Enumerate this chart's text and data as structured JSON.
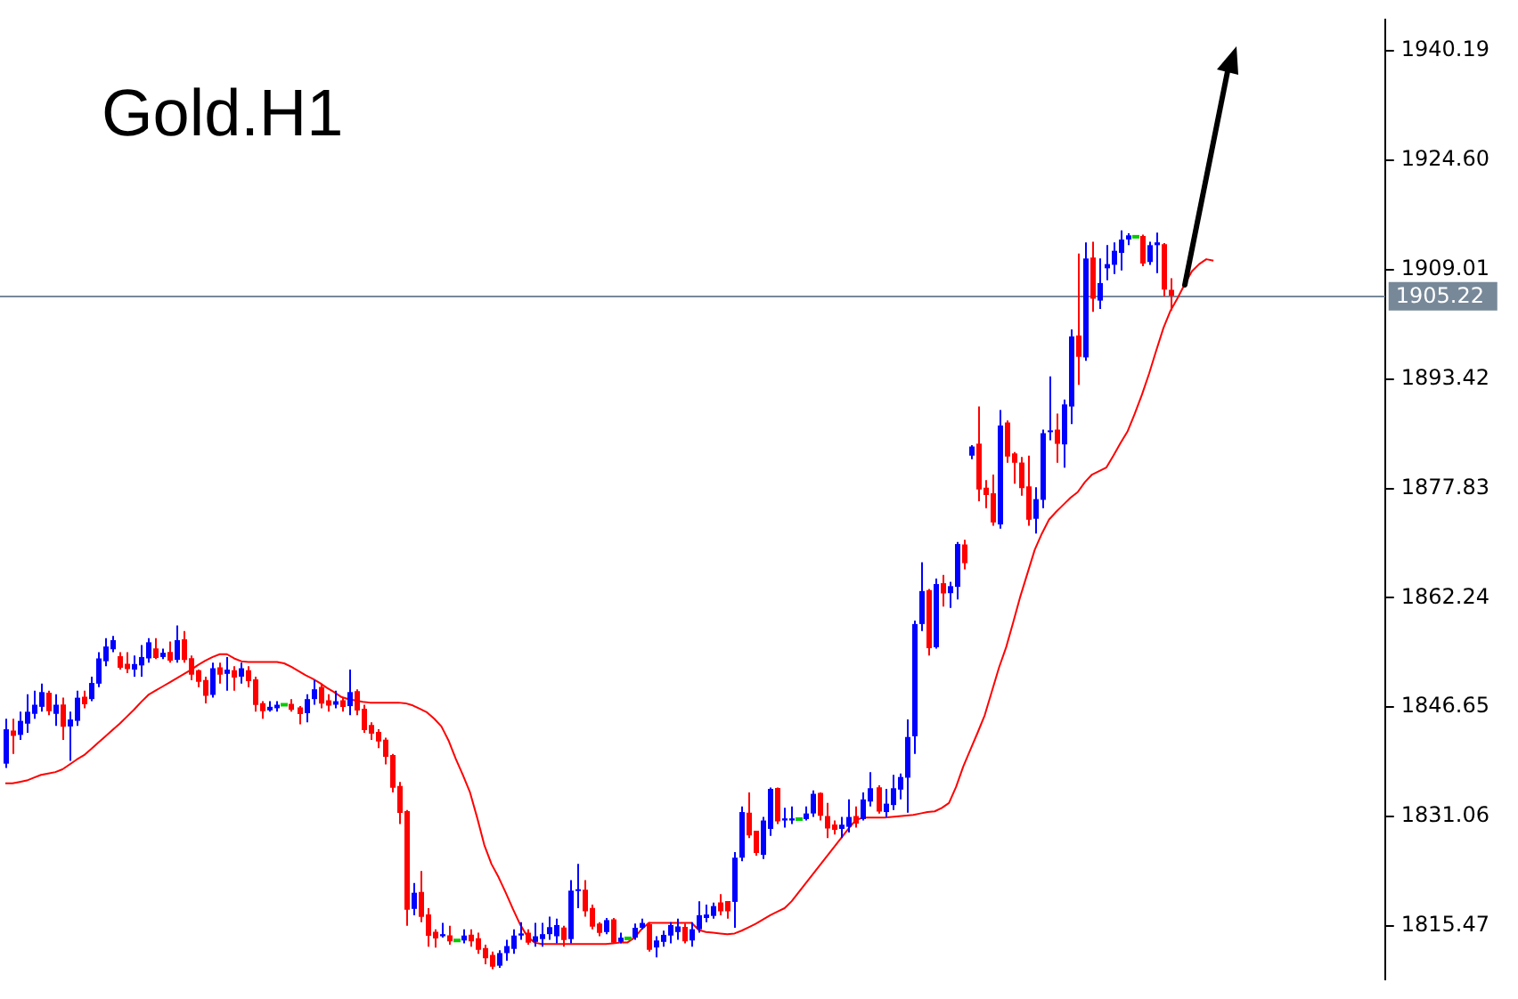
{
  "chart_data": {
    "type": "candlestick",
    "title": "Gold.H1",
    "categories": [
      null,
      null,
      null,
      null,
      null,
      null,
      null,
      null,
      null,
      null,
      null,
      null,
      null,
      null,
      null,
      null,
      null,
      null,
      null,
      null,
      null,
      null,
      null,
      null,
      null,
      null,
      null,
      null,
      null,
      null,
      null,
      null,
      null,
      null,
      null,
      null,
      null,
      null,
      null,
      null,
      null,
      null,
      null,
      null,
      null,
      null,
      null,
      null,
      null,
      null,
      null,
      null,
      null,
      null,
      null,
      null,
      null,
      null,
      null,
      null,
      null,
      null,
      null,
      null,
      null,
      null,
      null,
      null,
      null,
      null,
      null,
      null,
      null,
      null,
      null,
      null,
      null,
      null,
      null,
      null,
      null,
      null,
      null,
      null,
      null,
      null,
      null,
      null,
      null,
      null,
      null,
      null,
      null,
      null,
      null,
      null,
      null,
      null,
      null,
      null,
      null,
      null,
      null,
      null,
      null,
      null,
      null,
      null,
      null,
      null,
      null,
      null,
      null,
      null,
      null,
      null,
      null,
      null,
      null,
      null,
      null,
      null,
      null,
      null,
      null,
      null,
      null,
      null,
      null,
      null,
      null,
      null,
      null,
      null,
      null,
      null,
      null,
      null,
      null,
      null,
      null,
      null,
      null,
      null,
      null,
      null,
      null,
      null,
      null,
      null,
      null,
      null,
      null,
      null,
      null,
      null,
      null,
      null,
      null,
      null,
      null,
      null,
      null,
      null,
      null,
      null,
      null,
      null,
      null,
      null
    ],
    "ohlc": [
      [
        1838.6,
        1845,
        1838,
        1843.5
      ],
      [
        1843.2,
        1845,
        1840,
        1842.7
      ],
      [
        1842.7,
        1846,
        1842,
        1844.7
      ],
      [
        1844.3,
        1848.5,
        1843,
        1846
      ],
      [
        1845.7,
        1849,
        1845,
        1847
      ],
      [
        1846.7,
        1850,
        1846,
        1848.8
      ],
      [
        1848.6,
        1849,
        1845.5,
        1846.2
      ],
      [
        1845.7,
        1848.5,
        1844,
        1847
      ],
      [
        1846.9,
        1848,
        1842,
        1844
      ],
      [
        1843.9,
        1846,
        1839,
        1844.9
      ],
      [
        1844.7,
        1849,
        1844,
        1848
      ],
      [
        1848,
        1849,
        1846.5,
        1847.2
      ],
      [
        1847.8,
        1851,
        1847.5,
        1850.1
      ],
      [
        1850,
        1854.5,
        1849.5,
        1853.6
      ],
      [
        1853.2,
        1856.5,
        1852.5,
        1855.3
      ],
      [
        1854.9,
        1856.8,
        1854.5,
        1856.2
      ],
      [
        1853.8,
        1854.5,
        1852,
        1852.4
      ],
      [
        1852.7,
        1854.5,
        1851.5,
        1852.2
      ],
      [
        1852,
        1854,
        1851,
        1852.8
      ],
      [
        1852.6,
        1855.5,
        1851,
        1853.8
      ],
      [
        1853.6,
        1856.5,
        1853,
        1855.9
      ],
      [
        1854.9,
        1856.5,
        1853.5,
        1853.8
      ],
      [
        1853.8,
        1855,
        1853.5,
        1854.4
      ],
      [
        1854.4,
        1856,
        1853,
        1853.4
      ],
      [
        1853.4,
        1858.3,
        1853,
        1856.2
      ],
      [
        1856.2,
        1857.5,
        1853,
        1853.5
      ],
      [
        1853.5,
        1854,
        1850.5,
        1851.4
      ],
      [
        1851.8,
        1852,
        1849.5,
        1850.4
      ],
      [
        1850.4,
        1851,
        1847.2,
        1848.4
      ],
      [
        1848.4,
        1853,
        1848,
        1852.2
      ],
      [
        1852.2,
        1853,
        1850,
        1851.4
      ],
      [
        1851.4,
        1853.8,
        1849,
        1852
      ],
      [
        1851.8,
        1852.5,
        1849,
        1851
      ],
      [
        1851,
        1853,
        1850,
        1852.2
      ],
      [
        1851.8,
        1852.5,
        1849.5,
        1850.5
      ],
      [
        1850.5,
        1851,
        1846,
        1847.1
      ],
      [
        1847.1,
        1847.5,
        1845,
        1846.2
      ],
      [
        1846.2,
        1847.5,
        1846,
        1846.7
      ],
      [
        1846.5,
        1847.5,
        1846,
        1847
      ],
      [
        1847,
        1847.2,
        1846.8,
        1847
      ],
      [
        1847,
        1847.8,
        1846,
        1846.4
      ],
      [
        1846.5,
        1846.8,
        1844.2,
        1845.8
      ],
      [
        1845.8,
        1848.5,
        1844.5,
        1847.8
      ],
      [
        1847.8,
        1850.5,
        1847,
        1849.2
      ],
      [
        1849.4,
        1850,
        1846.5,
        1847.3
      ],
      [
        1847.5,
        1848.5,
        1846,
        1847
      ],
      [
        1847,
        1849,
        1846.5,
        1847.5
      ],
      [
        1847.5,
        1848,
        1846,
        1846.8
      ],
      [
        1846.8,
        1852,
        1845.5,
        1848.8
      ],
      [
        1848.8,
        1849.2,
        1845.5,
        1846.3
      ],
      [
        1846.3,
        1847,
        1843,
        1843.5
      ],
      [
        1844,
        1844.5,
        1842,
        1843
      ],
      [
        1843,
        1843.5,
        1840.8,
        1841.9
      ],
      [
        1841.9,
        1842.3,
        1838.5,
        1839.7
      ],
      [
        1839.7,
        1840,
        1834.5,
        1835.3
      ],
      [
        1835.3,
        1836,
        1830,
        1831.7
      ],
      [
        1831.7,
        1832,
        1815.5,
        1817.9
      ],
      [
        1817.9,
        1821.6,
        1817,
        1820.2
      ],
      [
        1820.2,
        1823.3,
        1816,
        1816.9
      ],
      [
        1817,
        1818,
        1812.5,
        1814.2
      ],
      [
        1814.5,
        1815,
        1812.4,
        1813.8
      ],
      [
        1814,
        1815.9,
        1813.8,
        1814.3
      ],
      [
        1814,
        1815.5,
        1812.8,
        1813.4
      ],
      [
        1813.4,
        1813.5,
        1813.3,
        1813.4
      ],
      [
        1813.4,
        1815,
        1813,
        1814.1
      ],
      [
        1814.1,
        1815,
        1812.5,
        1813.4
      ],
      [
        1813.6,
        1814.5,
        1811.5,
        1812.2
      ],
      [
        1812.2,
        1812.8,
        1810,
        1811
      ],
      [
        1811.2,
        1811.8,
        1809.3,
        1809.8
      ],
      [
        1809.8,
        1812,
        1809.5,
        1811.6
      ],
      [
        1811.6,
        1813.5,
        1810.5,
        1812.6
      ],
      [
        1812.2,
        1815,
        1811.5,
        1814.1
      ],
      [
        1814.1,
        1816,
        1813.5,
        1814.4
      ],
      [
        1814.4,
        1815,
        1812.8,
        1813.2
      ],
      [
        1813.2,
        1815.9,
        1812.5,
        1814
      ],
      [
        1813.6,
        1815.9,
        1812.5,
        1814.3
      ],
      [
        1814.3,
        1816.8,
        1813.5,
        1815.3
      ],
      [
        1814,
        1816.5,
        1813,
        1815.6
      ],
      [
        1815.1,
        1815.5,
        1812.5,
        1813.6
      ],
      [
        1813.6,
        1822,
        1813,
        1820.5
      ],
      [
        1820.5,
        1824.3,
        1818,
        1820.7
      ],
      [
        1820.5,
        1822,
        1816.8,
        1817.7
      ],
      [
        1817.9,
        1818.5,
        1815,
        1815.5
      ],
      [
        1815.7,
        1816,
        1814,
        1814.6
      ],
      [
        1814.6,
        1816.6,
        1814.3,
        1816.3
      ],
      [
        1816.3,
        1816.6,
        1813,
        1813.2
      ],
      [
        1813.2,
        1814.5,
        1813,
        1813.8
      ],
      [
        1813.7,
        1813.8,
        1813.6,
        1813.7
      ],
      [
        1813.8,
        1815.8,
        1813.5,
        1815.2
      ],
      [
        1815.2,
        1816.5,
        1815,
        1815.9
      ],
      [
        1815.6,
        1816,
        1811.8,
        1812.2
      ],
      [
        1812.4,
        1814,
        1811,
        1813.4
      ],
      [
        1813.2,
        1814.8,
        1812.5,
        1814.2
      ],
      [
        1814.1,
        1816,
        1813,
        1815.6
      ],
      [
        1814.6,
        1816.5,
        1813.5,
        1815.4
      ],
      [
        1815.2,
        1815.8,
        1813,
        1813.4
      ],
      [
        1813.4,
        1816,
        1812.5,
        1815
      ],
      [
        1815,
        1819,
        1814.5,
        1817
      ],
      [
        1816.6,
        1818.5,
        1816,
        1817.1
      ],
      [
        1816.9,
        1818.8,
        1816.5,
        1818.3
      ],
      [
        1818.7,
        1820,
        1817,
        1817.7
      ],
      [
        1818.9,
        1819,
        1816.5,
        1817.7
      ],
      [
        1818.9,
        1826,
        1815.2,
        1825.2
      ],
      [
        1825.2,
        1832.5,
        1824.7,
        1831.7
      ],
      [
        1831.5,
        1834.5,
        1828,
        1828.5
      ],
      [
        1828.9,
        1829,
        1825.5,
        1826
      ],
      [
        1825.6,
        1831,
        1825,
        1830.5
      ],
      [
        1829.3,
        1835.2,
        1828.3,
        1835
      ],
      [
        1835,
        1835.2,
        1830,
        1830.5
      ],
      [
        1830.5,
        1832.3,
        1829.5,
        1830.8
      ],
      [
        1830.5,
        1832.5,
        1830,
        1830.8
      ],
      [
        1830.7,
        1830.8,
        1830.6,
        1830.7
      ],
      [
        1830.7,
        1832.5,
        1830.5,
        1831.5
      ],
      [
        1831.5,
        1834.8,
        1831,
        1834.3
      ],
      [
        1834.3,
        1834.5,
        1830.5,
        1831.3
      ],
      [
        1831,
        1833,
        1828,
        1829.5
      ],
      [
        1829.8,
        1830.5,
        1828.5,
        1829.3
      ],
      [
        1829.3,
        1831,
        1828,
        1829.9
      ],
      [
        1829.6,
        1833.5,
        1828.8,
        1831
      ],
      [
        1831,
        1832.5,
        1829.5,
        1830.2
      ],
      [
        1830.7,
        1834.5,
        1830.5,
        1833.5
      ],
      [
        1833.2,
        1837.4,
        1832.5,
        1835.1
      ],
      [
        1835.1,
        1835.5,
        1831.5,
        1831.9
      ],
      [
        1831.7,
        1835,
        1831,
        1832.9
      ],
      [
        1832.7,
        1837,
        1832,
        1835.1
      ],
      [
        1834.9,
        1837.2,
        1833.5,
        1836.7
      ],
      [
        1836.6,
        1844.9,
        1831.6,
        1842.4
      ],
      [
        1842.5,
        1859,
        1840,
        1858.5
      ],
      [
        1858.5,
        1867.3,
        1857.5,
        1863.2
      ],
      [
        1863.2,
        1863.5,
        1854,
        1855.2
      ],
      [
        1855.2,
        1865,
        1855,
        1864.2
      ],
      [
        1864.2,
        1865.5,
        1861,
        1863
      ],
      [
        1862.9,
        1864.5,
        1860.8,
        1863.9
      ],
      [
        1863.8,
        1870.2,
        1862,
        1869.9
      ],
      [
        1869.7,
        1870.5,
        1866.3,
        1867.3
      ],
      [
        1882.5,
        1884,
        1882,
        1883.8
      ],
      [
        1884.1,
        1889.5,
        1876,
        1877.8
      ],
      [
        1877.8,
        1879,
        1875,
        1877
      ],
      [
        1877,
        1879.8,
        1872.5,
        1873.1
      ],
      [
        1872.7,
        1889,
        1872.1,
        1886.8
      ],
      [
        1887.1,
        1887.5,
        1881.5,
        1882.5
      ],
      [
        1882.7,
        1883,
        1878.5,
        1881.6
      ],
      [
        1881.4,
        1882.3,
        1876.8,
        1878
      ],
      [
        1878,
        1882.5,
        1872.5,
        1873.5
      ],
      [
        1873.5,
        1878,
        1871.4,
        1876.3
      ],
      [
        1876.2,
        1886.2,
        1875,
        1885.7
      ],
      [
        1886,
        1893.8,
        1884.7,
        1886.1
      ],
      [
        1886.1,
        1888.5,
        1881.5,
        1884.3
      ],
      [
        1884.1,
        1890.5,
        1880.8,
        1889.8
      ],
      [
        1889.5,
        1900.5,
        1887,
        1899.5
      ],
      [
        1899.5,
        1911.3,
        1892.6,
        1896.7
      ],
      [
        1896.5,
        1912.9,
        1896,
        1910.6
      ],
      [
        1910.6,
        1913,
        1903,
        1905
      ],
      [
        1904.6,
        1910.6,
        1903.4,
        1907.1
      ],
      [
        1909.2,
        1912.5,
        1907.5,
        1909.8
      ],
      [
        1909.7,
        1912.9,
        1908.4,
        1911.7
      ],
      [
        1911.4,
        1914.6,
        1908.9,
        1913.3
      ],
      [
        1913.3,
        1914.2,
        1912.5,
        1913.9
      ],
      [
        1913.7,
        1913.9,
        1913.5,
        1913.7
      ],
      [
        1913.7,
        1914,
        1909.5,
        1910
      ],
      [
        1910.1,
        1913,
        1909.7,
        1912.5
      ],
      [
        1912.5,
        1914.3,
        1908.5,
        1912.9
      ],
      [
        1912.5,
        1912.8,
        1905.2,
        1906.3
      ],
      [
        1906,
        1907.8,
        1903.2,
        1905.4
      ],
      null,
      null,
      null,
      null,
      null,
      null
    ],
    "series": [
      {
        "type": "line",
        "color": "#ff0000",
        "values": [
          1835.8,
          1835.8,
          1836.0,
          1836.2,
          1836.6,
          1837.0,
          1837.2,
          1837.4,
          1837.8,
          1838.5,
          1839.2,
          1839.8,
          1840.7,
          1841.6,
          1842.5,
          1843.4,
          1844.3,
          1845.3,
          1846.3,
          1847.4,
          1848.4,
          1849.0,
          1849.6,
          1850.2,
          1850.8,
          1851.4,
          1852.0,
          1852.7,
          1853.3,
          1853.8,
          1854.2,
          1854.2,
          1853.6,
          1853.2,
          1853.1,
          1853.1,
          1853.1,
          1853.1,
          1853.1,
          1852.9,
          1852.4,
          1851.8,
          1851.2,
          1850.7,
          1850.1,
          1849.4,
          1848.8,
          1848.1,
          1847.8,
          1847.6,
          1847.4,
          1847.3,
          1847.3,
          1847.3,
          1847.3,
          1847.3,
          1847.2,
          1846.9,
          1846.4,
          1845.9,
          1845.0,
          1843.9,
          1841.9,
          1839.3,
          1837.0,
          1834.5,
          1830.9,
          1827.0,
          1824.3,
          1822.4,
          1820.2,
          1817.9,
          1815.7,
          1814.0,
          1813.1,
          1812.9,
          1812.9,
          1812.9,
          1812.9,
          1812.9,
          1812.9,
          1812.9,
          1812.9,
          1812.9,
          1812.9,
          1813.0,
          1813.1,
          1813.1,
          1813.8,
          1815.0,
          1815.9,
          1815.9,
          1815.9,
          1815.9,
          1815.9,
          1815.9,
          1815.9,
          1814.9,
          1814.6,
          1814.5,
          1814.4,
          1814.3,
          1814.4,
          1814.8,
          1815.3,
          1815.8,
          1816.4,
          1817.0,
          1817.5,
          1818.0,
          1819.0,
          1820.3,
          1821.6,
          1822.9,
          1824.2,
          1825.5,
          1826.8,
          1828.1,
          1829.4,
          1830.6,
          1830.9,
          1830.9,
          1830.9,
          1830.9,
          1831.0,
          1831.1,
          1831.2,
          1831.3,
          1831.5,
          1831.7,
          1831.8,
          1832.3,
          1833.0,
          1835.3,
          1838.2,
          1840.6,
          1843.0,
          1845.5,
          1848.9,
          1852.3,
          1855.2,
          1858.8,
          1862.5,
          1865.8,
          1869.1,
          1871.4,
          1873.4,
          1874.5,
          1875.5,
          1876.5,
          1877.3,
          1878.7,
          1879.8,
          1880.3,
          1880.8,
          1882.5,
          1884.3,
          1886.0,
          1888.5,
          1891.2,
          1894.2,
          1897.5,
          1900.7,
          1903.2,
          1905.0,
          1907.0,
          1908.8,
          1909.8,
          1910.5,
          1910.3
        ]
      }
    ],
    "ylim": [
      1807.9,
      1944.6
    ],
    "yticks": [
      1815.47,
      1831.06,
      1846.65,
      1862.24,
      1877.83,
      1893.42,
      1909.01,
      {
        "value": 1924.6,
        "label": "1924.60"
      },
      1940.19
    ],
    "ref_lines": [
      {
        "axis": "y",
        "value": 1905.22,
        "label": "1905.22",
        "color": "#778899"
      }
    ],
    "grid": false,
    "legend": false
  }
}
